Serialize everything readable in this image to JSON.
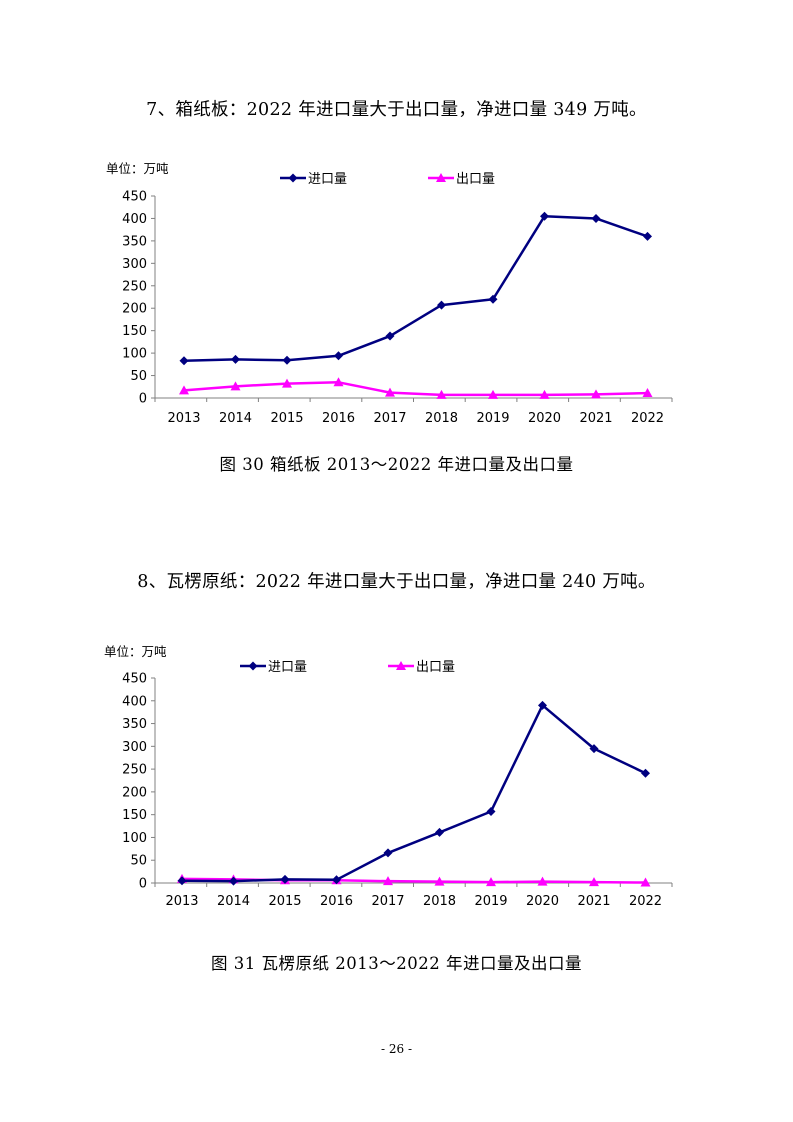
{
  "sections": [
    {
      "heading": "7、箱纸板：2022 年进口量大于出口量，净进口量 349 万吨。",
      "caption": "图 30 箱纸板 2013～2022 年进口量及出口量",
      "unit_label": "单位：万吨"
    },
    {
      "heading": "8、瓦楞原纸：2022 年进口量大于出口量，净进口量 240 万吨。",
      "caption": "图 31 瓦楞原纸 2013～2022 年进口量及出口量",
      "unit_label": "单位：万吨"
    }
  ],
  "chart_data": [
    {
      "type": "line",
      "title": "",
      "ylabel": "单位：万吨",
      "xlabel": "",
      "ylim": [
        0,
        450
      ],
      "yticks": [
        0,
        50,
        100,
        150,
        200,
        250,
        300,
        350,
        400,
        450
      ],
      "categories": [
        "2013",
        "2014",
        "2015",
        "2016",
        "2017",
        "2018",
        "2019",
        "2020",
        "2021",
        "2022"
      ],
      "series": [
        {
          "name": "进口量",
          "color": "#000080",
          "marker": "diamond",
          "values": [
            83,
            86,
            84,
            94,
            138,
            207,
            220,
            405,
            400,
            360
          ]
        },
        {
          "name": "出口量",
          "color": "#ff00ff",
          "marker": "triangle",
          "values": [
            17,
            26,
            32,
            35,
            12,
            7,
            7,
            7,
            8,
            11
          ]
        }
      ],
      "legend": "top"
    },
    {
      "type": "line",
      "title": "",
      "ylabel": "单位：万吨",
      "xlabel": "",
      "ylim": [
        0,
        450
      ],
      "yticks": [
        0,
        50,
        100,
        150,
        200,
        250,
        300,
        350,
        400,
        450
      ],
      "categories": [
        "2013",
        "2014",
        "2015",
        "2016",
        "2017",
        "2018",
        "2019",
        "2020",
        "2021",
        "2022"
      ],
      "series": [
        {
          "name": "进口量",
          "color": "#000080",
          "marker": "diamond",
          "values": [
            5,
            4,
            8,
            7,
            66,
            111,
            157,
            390,
            295,
            241
          ]
        },
        {
          "name": "出口量",
          "color": "#ff00ff",
          "marker": "triangle",
          "values": [
            9,
            8,
            6,
            6,
            4,
            3,
            2,
            3,
            2,
            1
          ]
        }
      ],
      "legend": "top"
    }
  ],
  "page_number": "- 26 -"
}
